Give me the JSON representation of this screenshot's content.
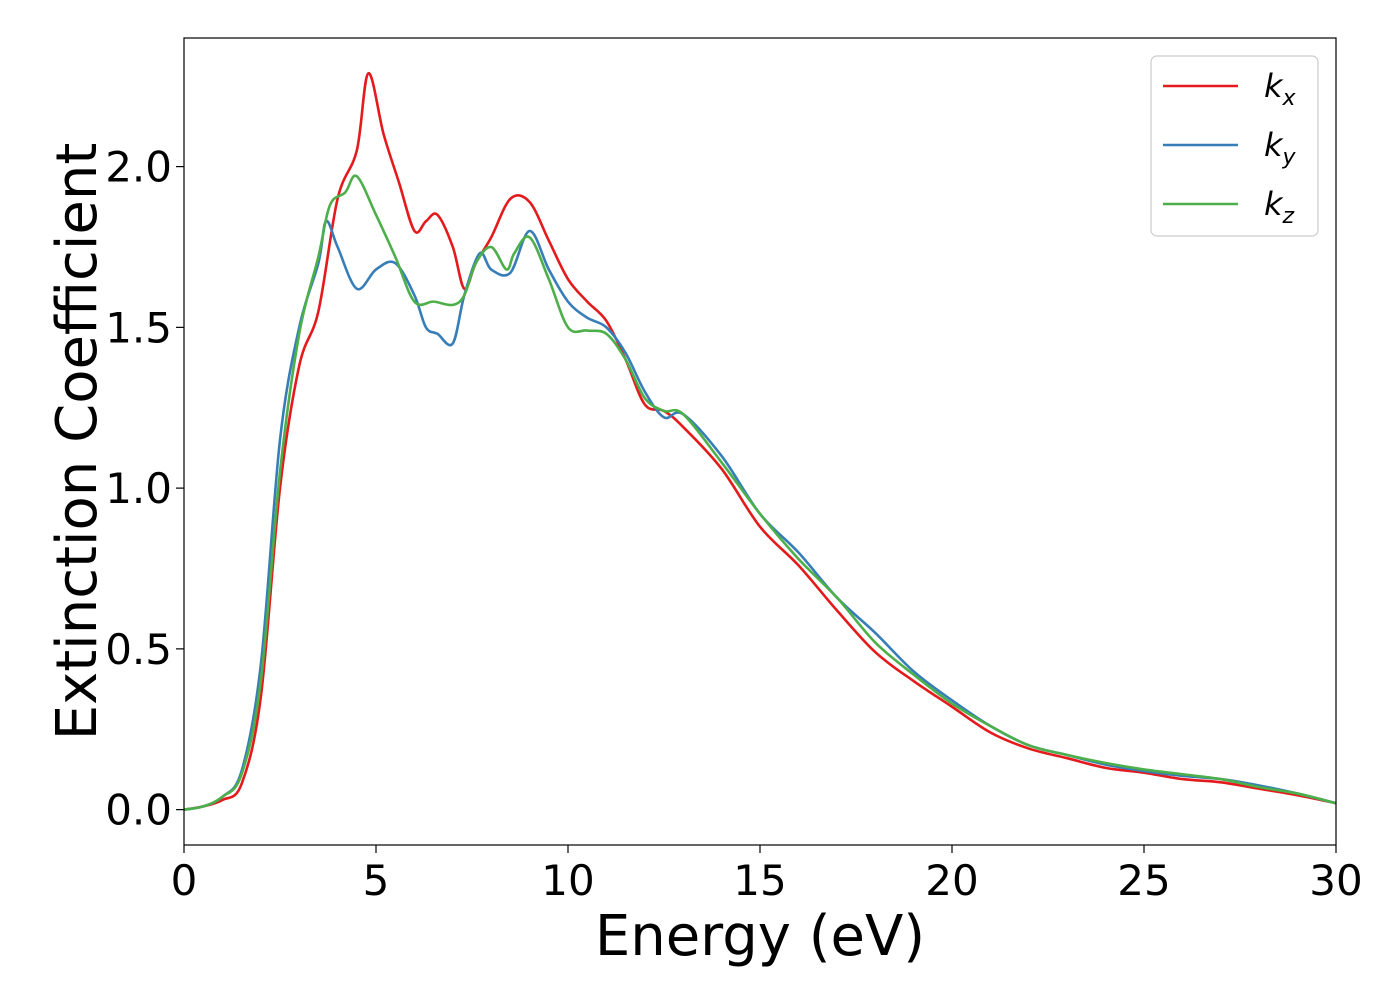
{
  "chart_data": {
    "type": "line",
    "title": "",
    "xlabel": "Energy (eV)",
    "ylabel": "Extinction Coefficient",
    "xlim": [
      0,
      30
    ],
    "ylim": [
      -0.11,
      2.4
    ],
    "xticks": [
      0,
      5,
      10,
      15,
      20,
      25,
      30
    ],
    "xtick_labels": [
      "0",
      "5",
      "10",
      "15",
      "20",
      "25",
      "30"
    ],
    "yticks": [
      0.0,
      0.5,
      1.0,
      1.5,
      2.0
    ],
    "ytick_labels": [
      "0.0",
      "0.5",
      "1.0",
      "1.5",
      "2.0"
    ],
    "grid": false,
    "legend_position": "top-right",
    "series": [
      {
        "name": "k",
        "subscript": "x",
        "color": "#e41a1c",
        "x": [
          0,
          0.5,
          1.0,
          1.5,
          2.0,
          2.5,
          3.0,
          3.5,
          4.0,
          4.5,
          4.8,
          5.2,
          5.6,
          6.0,
          6.3,
          6.6,
          7.0,
          7.3,
          7.6,
          8.0,
          8.5,
          9.0,
          9.5,
          10.0,
          10.5,
          11.0,
          11.5,
          12.0,
          12.5,
          13.0,
          14.0,
          15.0,
          16.0,
          17.0,
          18.0,
          19.0,
          20.0,
          21.0,
          22.0,
          23.0,
          24.0,
          25.0,
          26.0,
          27.0,
          28.0,
          29.0,
          30.0
        ],
        "y": [
          0.0,
          0.01,
          0.03,
          0.08,
          0.35,
          1.0,
          1.38,
          1.55,
          1.9,
          2.05,
          2.29,
          2.1,
          1.95,
          1.8,
          1.83,
          1.85,
          1.75,
          1.62,
          1.7,
          1.78,
          1.9,
          1.89,
          1.77,
          1.65,
          1.58,
          1.52,
          1.4,
          1.26,
          1.24,
          1.19,
          1.06,
          0.88,
          0.76,
          0.62,
          0.49,
          0.4,
          0.32,
          0.24,
          0.19,
          0.16,
          0.13,
          0.115,
          0.095,
          0.085,
          0.065,
          0.045,
          0.02
        ]
      },
      {
        "name": "k",
        "subscript": "y",
        "color": "#377eb8",
        "x": [
          0,
          0.5,
          1.0,
          1.5,
          2.0,
          2.5,
          3.0,
          3.5,
          3.7,
          4.0,
          4.5,
          5.0,
          5.5,
          6.0,
          6.3,
          6.6,
          7.0,
          7.3,
          7.7,
          8.0,
          8.5,
          9.0,
          9.5,
          10.0,
          10.5,
          11.0,
          11.5,
          12.0,
          12.5,
          13.0,
          14.0,
          15.0,
          16.0,
          17.0,
          18.0,
          19.0,
          20.0,
          21.0,
          22.0,
          23.0,
          24.0,
          25.0,
          26.0,
          27.0,
          28.0,
          29.0,
          30.0
        ],
        "y": [
          0.0,
          0.01,
          0.04,
          0.12,
          0.45,
          1.15,
          1.5,
          1.7,
          1.83,
          1.75,
          1.62,
          1.68,
          1.7,
          1.6,
          1.5,
          1.48,
          1.45,
          1.6,
          1.73,
          1.68,
          1.67,
          1.8,
          1.68,
          1.58,
          1.53,
          1.5,
          1.42,
          1.3,
          1.22,
          1.23,
          1.1,
          0.92,
          0.8,
          0.66,
          0.55,
          0.43,
          0.34,
          0.26,
          0.2,
          0.17,
          0.14,
          0.12,
          0.105,
          0.095,
          0.075,
          0.05,
          0.02
        ]
      },
      {
        "name": "k",
        "subscript": "z",
        "color": "#4daf4a",
        "x": [
          0,
          0.5,
          1.0,
          1.5,
          2.0,
          2.5,
          3.0,
          3.5,
          3.8,
          4.2,
          4.5,
          5.0,
          5.5,
          6.0,
          6.5,
          7.0,
          7.3,
          7.6,
          8.0,
          8.4,
          8.6,
          9.0,
          9.5,
          10.0,
          10.5,
          11.0,
          11.5,
          12.0,
          12.5,
          13.0,
          14.0,
          15.0,
          16.0,
          17.0,
          18.0,
          19.0,
          20.0,
          21.0,
          22.0,
          23.0,
          24.0,
          25.0,
          26.0,
          27.0,
          28.0,
          29.0,
          30.0
        ],
        "y": [
          0.0,
          0.01,
          0.04,
          0.11,
          0.4,
          1.05,
          1.48,
          1.72,
          1.88,
          1.92,
          1.97,
          1.85,
          1.72,
          1.58,
          1.58,
          1.57,
          1.6,
          1.7,
          1.75,
          1.68,
          1.73,
          1.78,
          1.65,
          1.5,
          1.49,
          1.48,
          1.4,
          1.28,
          1.24,
          1.23,
          1.08,
          0.92,
          0.78,
          0.66,
          0.52,
          0.42,
          0.33,
          0.26,
          0.2,
          0.17,
          0.145,
          0.125,
          0.11,
          0.095,
          0.07,
          0.05,
          0.02
        ]
      }
    ]
  }
}
